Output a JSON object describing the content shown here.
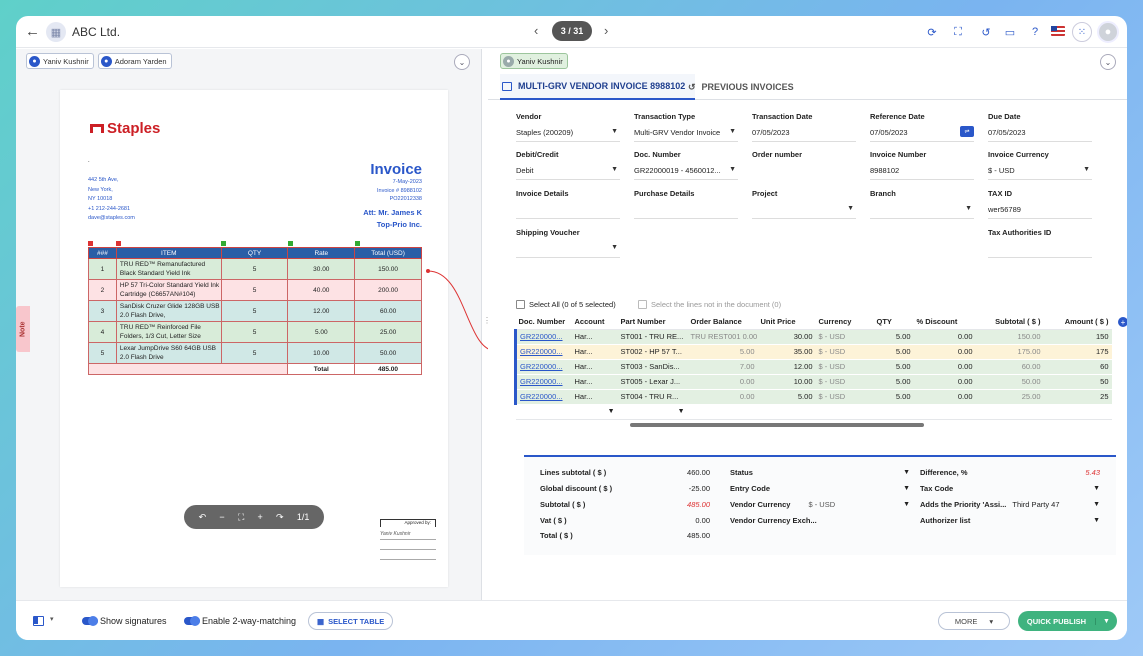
{
  "topbar": {
    "company_name": "ABC Ltd.",
    "pager": "3 / 31",
    "icons": [
      "refresh-icon",
      "fullscreen-icon",
      "history-icon",
      "chat-icon",
      "help-icon",
      "flag-us-icon",
      "apps-icon",
      "user-icon"
    ]
  },
  "left": {
    "chips": [
      "Yaniv Kushnir",
      "Adoram Yarden"
    ],
    "note_tab": "Note",
    "doc": {
      "brand": "Staples",
      "dot": ".",
      "address": [
        "442 5th Ave,",
        "New York,",
        "NY 10018",
        "+1 212-244-2681",
        "dave@staples.com"
      ],
      "title": "Invoice",
      "meta": [
        "7-May-2023",
        "Invoice # 8988102",
        "PO22012338"
      ],
      "att": [
        "Att: Mr. James K",
        "Top-Prio Inc."
      ],
      "columns": [
        "###",
        "ITEM",
        "QTY",
        "Rate",
        "Total (USD)"
      ],
      "rows": [
        {
          "no": "1",
          "item": "TRU RED™ Remanufactured Black Standard Yield Ink",
          "qty": "5",
          "rate": "30.00",
          "total": "150.00"
        },
        {
          "no": "2",
          "item": "HP 57 Tri-Color Standard Yield Ink Cartridge (C6657AN#104)",
          "qty": "5",
          "rate": "40.00",
          "total": "200.00"
        },
        {
          "no": "3",
          "item": "SanDisk Cruzer Glide 128GB USB 2.0 Flash Drive,",
          "qty": "5",
          "rate": "12.00",
          "total": "60.00"
        },
        {
          "no": "4",
          "item": "TRU RED™ Reinforced File Folders, 1/3 Cut, Letter Size",
          "qty": "5",
          "rate": "5.00",
          "total": "25.00"
        },
        {
          "no": "5",
          "item": "Lexar JumpDrive S60 64GB USB 2.0 Flash Drive",
          "qty": "5",
          "rate": "10.00",
          "total": "50.00"
        }
      ],
      "total_label": "Total",
      "total_value": "485.00",
      "page": "1/1",
      "approved_by": "Approved by:",
      "signature": "Yaniv Kushnir"
    }
  },
  "right": {
    "chip": "Yaniv Kushnir",
    "tabs": {
      "active": "MULTI-GRV VENDOR INVOICE 8988102",
      "inactive": "PREVIOUS INVOICES"
    },
    "fields": {
      "vendor": {
        "label": "Vendor",
        "value": "Staples (200209)"
      },
      "transaction_type": {
        "label": "Transaction Type",
        "value": "Multi-GRV Vendor Invoice"
      },
      "transaction_date": {
        "label": "Transaction Date",
        "value": "07/05/2023"
      },
      "reference_date": {
        "label": "Reference Date",
        "value": "07/05/2023"
      },
      "due_date": {
        "label": "Due Date",
        "value": "07/05/2023"
      },
      "debit_credit": {
        "label": "Debit/Credit",
        "value": "Debit"
      },
      "doc_number": {
        "label": "Doc. Number",
        "value": "GR22000019 - 4560012..."
      },
      "order_number": {
        "label": "Order number",
        "value": ""
      },
      "invoice_number": {
        "label": "Invoice Number",
        "value": "8988102"
      },
      "invoice_currency": {
        "label": "Invoice Currency",
        "value": "$ - USD"
      },
      "invoice_details": {
        "label": "Invoice Details",
        "value": ""
      },
      "purchase_details": {
        "label": "Purchase Details",
        "value": ""
      },
      "project": {
        "label": "Project",
        "value": ""
      },
      "branch": {
        "label": "Branch",
        "value": ""
      },
      "tax_id": {
        "label": "TAX ID",
        "value": "wer56789"
      },
      "shipping_voucher": {
        "label": "Shipping Voucher",
        "value": ""
      },
      "tax_authorities_id": {
        "label": "Tax Authorities ID",
        "value": ""
      }
    },
    "select_all": "Select All (0 of 5 selected)",
    "select_missing": "Select the lines not in the document (0)",
    "columns": [
      "Doc. Number",
      "Account",
      "Part Number",
      "Order Balance",
      "Unit Price",
      "Currency",
      "QTY",
      "% Discount",
      "Subtotal ( $ )",
      "Amount ( $ )"
    ],
    "lines": [
      {
        "doc": "GR220000...",
        "account": "Har...",
        "part": "ST001 - TRU RE...",
        "balance": "TRU REST001 0.00",
        "unit": "30.00",
        "currency": "$ - USD",
        "qty": "5.00",
        "discount": "0.00",
        "subtotal": "150.00",
        "amount": "150"
      },
      {
        "doc": "GR220000...",
        "account": "Har...",
        "part": "ST002 - HP 57 T...",
        "balance": "5.00",
        "unit": "35.00",
        "currency": "$ - USD",
        "qty": "5.00",
        "discount": "0.00",
        "subtotal": "175.00",
        "amount": "175"
      },
      {
        "doc": "GR220000...",
        "account": "Har...",
        "part": "ST003 - SanDis...",
        "balance": "7.00",
        "unit": "12.00",
        "currency": "$ - USD",
        "qty": "5.00",
        "discount": "0.00",
        "subtotal": "60.00",
        "amount": "60"
      },
      {
        "doc": "GR220000...",
        "account": "Har...",
        "part": "ST005 - Lexar J...",
        "balance": "0.00",
        "unit": "10.00",
        "currency": "$ - USD",
        "qty": "5.00",
        "discount": "0.00",
        "subtotal": "50.00",
        "amount": "50"
      },
      {
        "doc": "GR220000...",
        "account": "Har...",
        "part": "ST004 - TRU R...",
        "balance": "0.00",
        "unit": "5.00",
        "currency": "$ - USD",
        "qty": "5.00",
        "discount": "0.00",
        "subtotal": "25.00",
        "amount": "25"
      }
    ],
    "summary": {
      "lines_subtotal": {
        "label": "Lines subtotal ( $ )",
        "value": "460.00"
      },
      "global_discount": {
        "label": "Global discount ( $ )",
        "value": "-25.00"
      },
      "subtotal": {
        "label": "Subtotal ( $ )",
        "value": "485.00"
      },
      "vat": {
        "label": "Vat ( $ )",
        "value": "0.00"
      },
      "total": {
        "label": "Total ( $ )",
        "value": "485.00"
      },
      "status": {
        "label": "Status",
        "value": ""
      },
      "entry_code": {
        "label": "Entry Code",
        "value": ""
      },
      "vendor_currency": {
        "label": "Vendor Currency",
        "value": "$ - USD"
      },
      "vendor_currency_exch": {
        "label": "Vendor Currency Exch...",
        "value": ""
      },
      "difference": {
        "label": "Difference, %",
        "value": "5.43"
      },
      "tax_code": {
        "label": "Tax Code",
        "value": ""
      },
      "adds_priority": {
        "label": "Adds the Priority 'Assi...",
        "value": "Third Party 47"
      },
      "authorizer": {
        "label": "Authorizer list",
        "value": ""
      }
    }
  },
  "bottombar": {
    "show_signatures": "Show signatures",
    "two_way": "Enable 2-way-matching",
    "select_table": "SELECT TABLE",
    "more": "MORE",
    "quick_publish": "QUICK PUBLISH"
  },
  "colors": {
    "accent": "#2a57c9",
    "publish": "#3fb37f",
    "error": "#d33333"
  }
}
